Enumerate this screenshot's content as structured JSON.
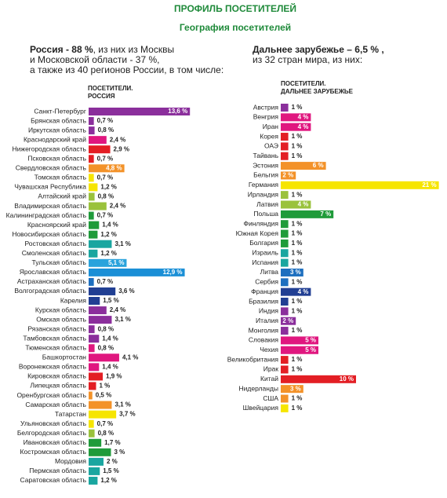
{
  "header": {
    "title": "ПРОФИЛЬ ПОСЕТИТЕЛЕЙ",
    "subtitle": "География посетителей",
    "left": {
      "lines": [
        {
          "bold": "Россия -  88 %",
          "text": ", из них из Москвы"
        },
        {
          "text": "и Московской области -  37 %,"
        },
        {
          "text": "а также из 40 регионов России, в том числе:"
        }
      ]
    },
    "right": {
      "lines": [
        {
          "bold": "Дальнее зарубежье – 6,5 % ,"
        },
        {
          "text": "из 32 стран мира, из них:"
        }
      ]
    }
  },
  "chart_data": [
    {
      "type": "bar",
      "orientation": "horizontal",
      "title_lines": [
        "ПОСЕТИТЕЛИ.",
        "РОССИЯ"
      ],
      "categories": [
        "Санкт-Петербург",
        "Брянская область",
        "Иркутская область",
        "Краснодарский край",
        "Нижегородская область",
        "Псковская область",
        "Свердловская область",
        "Томская область",
        "Чувашская Республика",
        "Алтайский край",
        "Владимирская область",
        "Калининградская область",
        "Красноярский край",
        "Новосибирская область",
        "Ростовская область",
        "Смоленская область",
        "Тульская область",
        "Ярославская область",
        "Астраханская область",
        "Волгоградская область",
        "Карелия",
        "Курская область",
        "Омская область",
        "Рязанская область",
        "Тамбовская область",
        "Тюменская область",
        "Башкортостан",
        "Воронежская область",
        "Кировская область",
        "Липецкая область",
        "Оренбургская область",
        "Самарская область",
        "Татарстан",
        "Ульяновская область",
        "Белгородская область",
        "Ивановская область",
        "Костромская область",
        "Мордовия",
        "Пермская область",
        "Саратовская область"
      ],
      "values": [
        13.6,
        0.7,
        0.8,
        2.4,
        2.9,
        0.7,
        4.8,
        0.7,
        1.2,
        0.8,
        2.4,
        0.7,
        1.4,
        1.2,
        3.1,
        1.2,
        5.1,
        12.9,
        0.7,
        3.6,
        1.5,
        2.4,
        3.1,
        0.8,
        1.4,
        0.8,
        4.1,
        1.4,
        1.9,
        1,
        0.5,
        3.1,
        3.7,
        0.7,
        0.8,
        1.7,
        3,
        2,
        1.5,
        1.2
      ],
      "value_labels": [
        "13,6 %",
        "0,7 %",
        "0,8 %",
        "2,4 %",
        "2,9 %",
        "0,7 %",
        "4,8 %",
        "0,7 %",
        "1,2 %",
        "0,8 %",
        "2,4 %",
        "0,7 %",
        "1,4 %",
        "1,2 %",
        "3,1 %",
        "1,2 %",
        "5,1 %",
        "12,9 %",
        "0,7 %",
        "3,6 %",
        "1,5 %",
        "2,4 %",
        "3,1 %",
        "0,8 %",
        "1,4 %",
        "0,8 %",
        "4,1 %",
        "1,4 %",
        "1,9 %",
        "1 %",
        "0,5 %",
        "3,1 %",
        "3,7 %",
        "0,7 %",
        "0,8 %",
        "1,7 %",
        "3 %",
        "2 %",
        "1,5 %",
        "1,2 %"
      ],
      "colors": [
        "#8b2f9c",
        "#8b2f9c",
        "#8b2f9c",
        "#e0177f",
        "#e31e24",
        "#e31e24",
        "#f39229",
        "#f6e500",
        "#f6e500",
        "#9ac23c",
        "#9ac23c",
        "#1f9b3a",
        "#1f9b3a",
        "#1f9b3a",
        "#1aa6a0",
        "#1aa6a0",
        "#2aa3dc",
        "#1a8fd6",
        "#1d6fbf",
        "#213f93",
        "#213f93",
        "#8b2f9c",
        "#8b2f9c",
        "#8b2f9c",
        "#8b2f9c",
        "#e0177f",
        "#e0177f",
        "#e0177f",
        "#e31e24",
        "#e31e24",
        "#f39229",
        "#f39229",
        "#f6e500",
        "#f6e500",
        "#9ac23c",
        "#1f9b3a",
        "#1f9b3a",
        "#1aa6a0",
        "#1aa6a0",
        "#1aa6a0"
      ]
    },
    {
      "type": "bar",
      "orientation": "horizontal",
      "title_lines": [
        "ПОСЕТИТЕЛИ.",
        "ДАЛЬНЕЕ ЗАРУБЕЖЬЕ"
      ],
      "categories": [
        "Австрия",
        "Венгрия",
        "Иран",
        "Корея",
        "ОАЭ",
        "Тайвань",
        "Эстония",
        "Бельгия",
        "Германия",
        "Ирландия",
        "Латвия",
        "Польша",
        "Финляндия",
        "Южная Корея",
        "Болгария",
        "Израиль",
        "Испания",
        "Литва",
        "Сербия",
        "Франция",
        "Бразилия",
        "Индия",
        "Италия",
        "Монголия",
        "Словакия",
        "Чехия",
        "Великобритания",
        "Ирак",
        "Китай",
        "Нидерланды",
        "США",
        "Швейцария"
      ],
      "values": [
        1,
        4,
        4,
        1,
        1,
        1,
        6,
        2,
        21,
        1,
        4,
        7,
        1,
        1,
        1,
        1,
        1,
        3,
        1,
        4,
        1,
        1,
        2,
        1,
        5,
        5,
        1,
        1,
        10,
        3,
        1,
        1
      ],
      "value_labels": [
        "1 %",
        "4 %",
        "4 %",
        "1 %",
        "1 %",
        "1 %",
        "6 %",
        "2 %",
        "21 %",
        "1 %",
        "4 %",
        "7 %",
        "1 %",
        "1 %",
        "1 %",
        "1 %",
        "1 %",
        "3 %",
        "1 %",
        "4 %",
        "1 %",
        "1 %",
        "2 %",
        "1 %",
        "5 %",
        "5 %",
        "1 %",
        "1 %",
        "10 %",
        "3 %",
        "1 %",
        "1 %"
      ],
      "colors": [
        "#8b2f9c",
        "#e0177f",
        "#e0177f",
        "#e31e24",
        "#e31e24",
        "#e31e24",
        "#f39229",
        "#f39229",
        "#f6e500",
        "#9ac23c",
        "#9ac23c",
        "#1f9b3a",
        "#1f9b3a",
        "#1f9b3a",
        "#1f9b3a",
        "#1aa6a0",
        "#1aa6a0",
        "#1d6fbf",
        "#1d6fbf",
        "#213f93",
        "#213f93",
        "#8b2f9c",
        "#8b2f9c",
        "#8b2f9c",
        "#e0177f",
        "#e0177f",
        "#e31e24",
        "#e31e24",
        "#e31e24",
        "#f39229",
        "#f39229",
        "#f6e500"
      ]
    }
  ]
}
